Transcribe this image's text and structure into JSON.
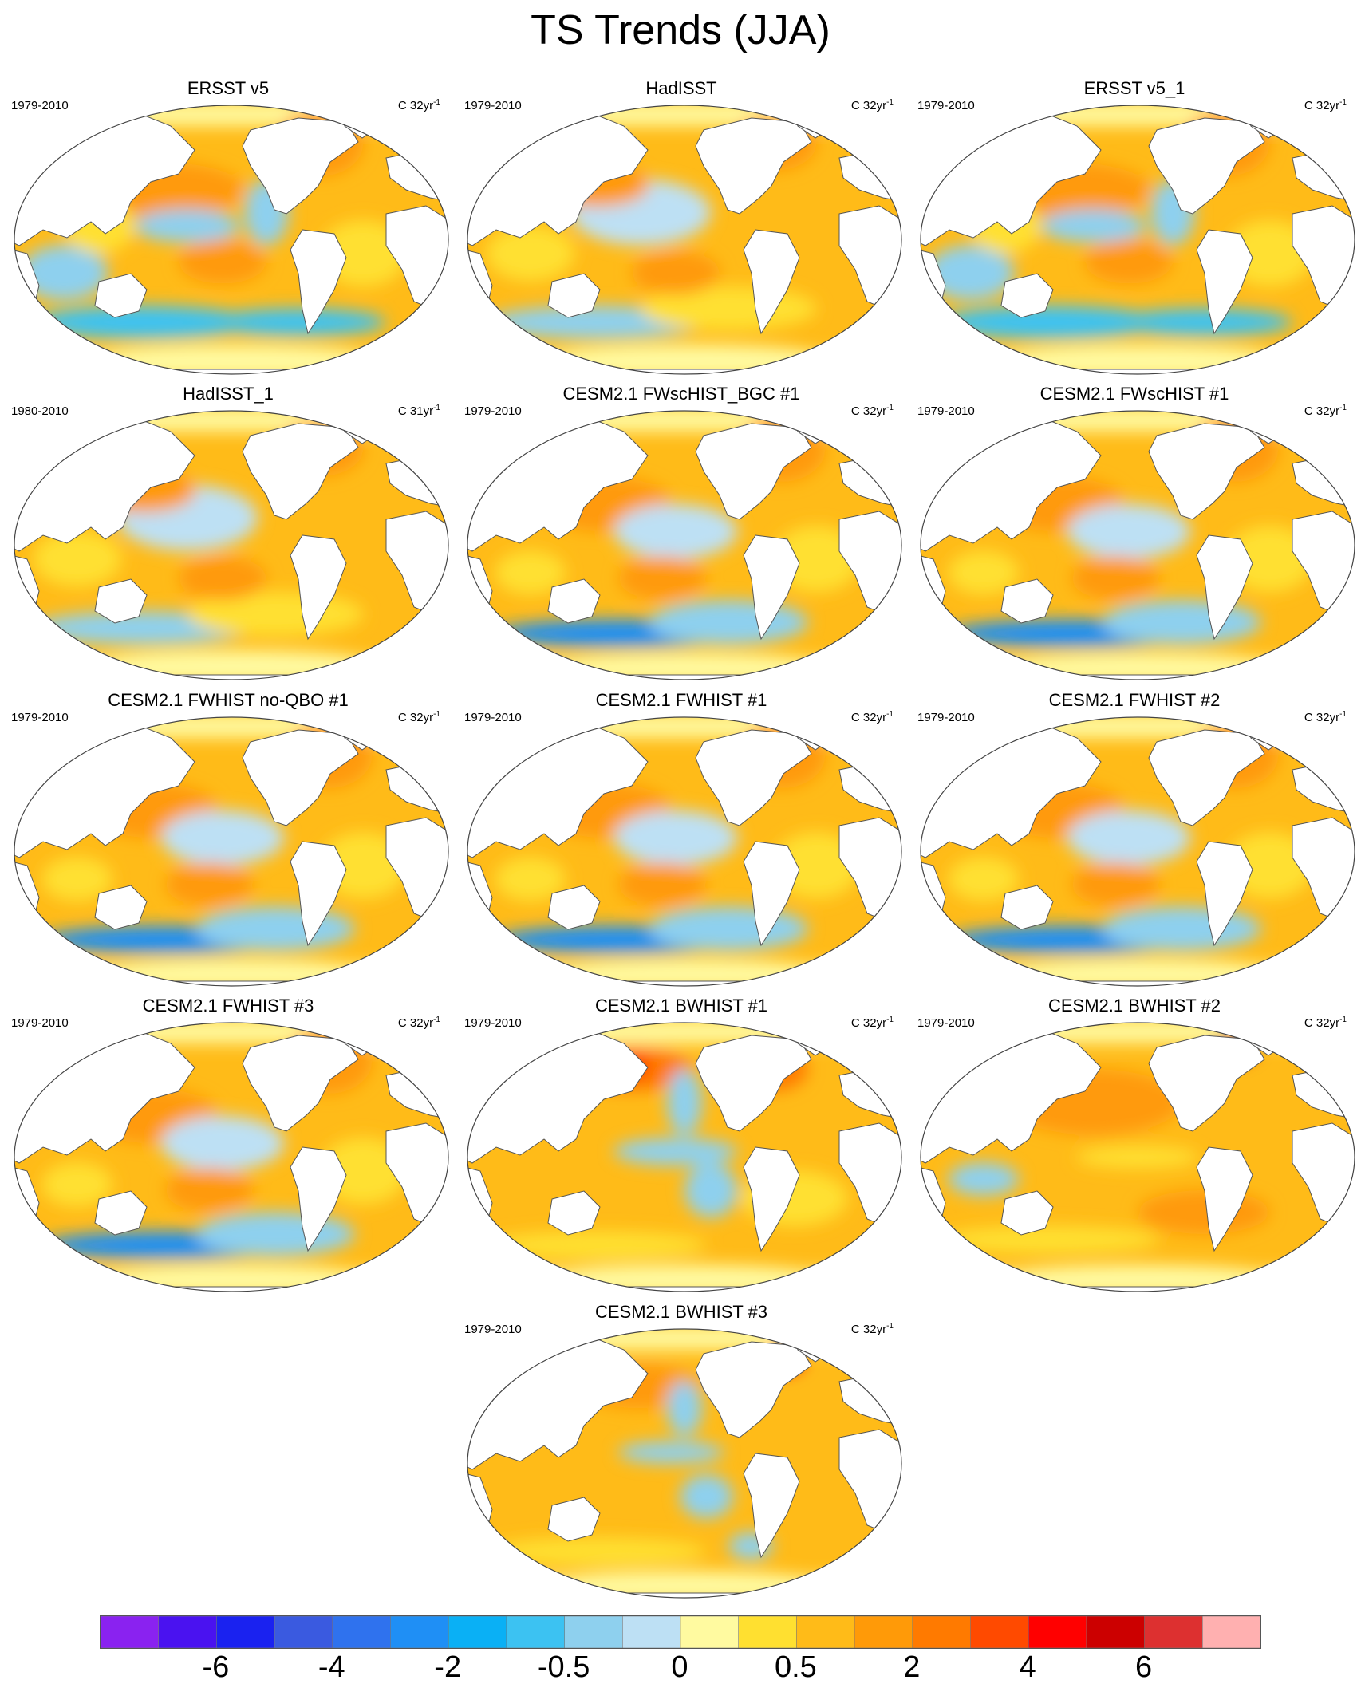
{
  "title": "TS Trends (JJA)",
  "panels": [
    {
      "title": "ERSST v5",
      "years": "1979-2010",
      "units": "C 32yr",
      "units_exp": "-1",
      "pattern": "obs"
    },
    {
      "title": "HadISST",
      "years": "1979-2010",
      "units": "C 32yr",
      "units_exp": "-1",
      "pattern": "had"
    },
    {
      "title": "ERSST v5_1",
      "years": "1979-2010",
      "units": "C 32yr",
      "units_exp": "-1",
      "pattern": "obs"
    },
    {
      "title": "HadISST_1",
      "years": "1980-2010",
      "units": "C 31yr",
      "units_exp": "-1",
      "pattern": "had"
    },
    {
      "title": "CESM2.1 FWscHIST_BGC #1",
      "years": "1979-2010",
      "units": "C 32yr",
      "units_exp": "-1",
      "pattern": "fw"
    },
    {
      "title": "CESM2.1 FWscHIST #1",
      "years": "1979-2010",
      "units": "C 32yr",
      "units_exp": "-1",
      "pattern": "fw"
    },
    {
      "title": "CESM2.1 FWHIST no-QBO #1",
      "years": "1979-2010",
      "units": "C 32yr",
      "units_exp": "-1",
      "pattern": "fw"
    },
    {
      "title": "CESM2.1 FWHIST #1",
      "years": "1979-2010",
      "units": "C 32yr",
      "units_exp": "-1",
      "pattern": "fw"
    },
    {
      "title": "CESM2.1 FWHIST #2",
      "years": "1979-2010",
      "units": "C 32yr",
      "units_exp": "-1",
      "pattern": "fw"
    },
    {
      "title": "CESM2.1 FWHIST #3",
      "years": "1979-2010",
      "units": "C 32yr",
      "units_exp": "-1",
      "pattern": "fw"
    },
    {
      "title": "CESM2.1 BWHIST #1",
      "years": "1979-2010",
      "units": "C 32yr",
      "units_exp": "-1",
      "pattern": "bw1"
    },
    {
      "title": "CESM2.1 BWHIST #2",
      "years": "1979-2010",
      "units": "C 32yr",
      "units_exp": "-1",
      "pattern": "bw2"
    },
    {
      "title": "CESM2.1 BWHIST #3",
      "years": "1979-2010",
      "units": "C 32yr",
      "units_exp": "-1",
      "pattern": "bw3"
    }
  ],
  "colorbar": {
    "colors": [
      "#8a22f0",
      "#4a12f0",
      "#1a22f0",
      "#3a5ae0",
      "#2f72ee",
      "#1f8ff5",
      "#0ab0f5",
      "#3cc2f2",
      "#8ed0ee",
      "#bde0f4",
      "#fffaa0",
      "#ffe030",
      "#ffbb18",
      "#ff9a08",
      "#ff7a00",
      "#ff4a00",
      "#ff0000",
      "#cc0000",
      "#dd3030",
      "#ffb0b0"
    ],
    "tick_labels": [
      {
        "label": "-6",
        "boundary": 2
      },
      {
        "label": "-4",
        "boundary": 4
      },
      {
        "label": "-2",
        "boundary": 6
      },
      {
        "label": "-0.5",
        "boundary": 8
      },
      {
        "label": "0",
        "boundary": 10
      },
      {
        "label": "0.5",
        "boundary": 12
      },
      {
        "label": "2",
        "boundary": 14
      },
      {
        "label": "4",
        "boundary": 16
      },
      {
        "label": "6",
        "boundary": 18
      }
    ]
  }
}
